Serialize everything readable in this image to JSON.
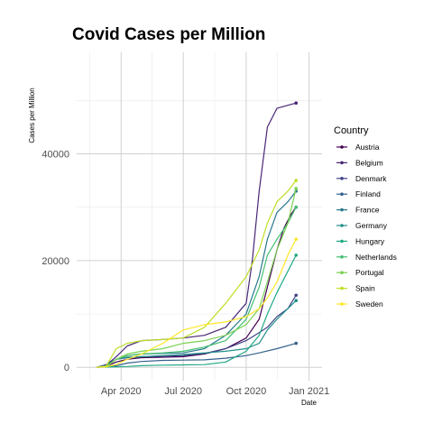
{
  "chart_data": {
    "type": "line",
    "title": "Covid Cases per Million",
    "xlabel": "Date",
    "ylabel": "Cases per Million",
    "x_ticks": [
      "Apr 2020",
      "Jul 2020",
      "Oct 2020",
      "Jan 2021"
    ],
    "y_ticks": [
      "0",
      "20000",
      "40000"
    ],
    "xlim": [
      "2020-01-27",
      "2021-01-20"
    ],
    "ylim": [
      -2500,
      59000
    ],
    "grid": true,
    "legend": {
      "title": "Country",
      "position": "right"
    },
    "series": [
      {
        "name": "Austria",
        "color": "#440154",
        "points": [
          [
            "2020-02-25",
            0
          ],
          [
            "2020-03-10",
            200
          ],
          [
            "2020-03-25",
            1000
          ],
          [
            "2020-04-10",
            1500
          ],
          [
            "2020-05-01",
            1800
          ],
          [
            "2020-06-01",
            1900
          ],
          [
            "2020-07-01",
            2000
          ],
          [
            "2020-08-01",
            2500
          ],
          [
            "2020-09-01",
            3500
          ],
          [
            "2020-10-01",
            5500
          ],
          [
            "2020-10-20",
            9000
          ],
          [
            "2020-11-01",
            15000
          ],
          [
            "2020-11-15",
            22000
          ],
          [
            "2020-11-25",
            26000
          ],
          [
            "2020-12-05",
            28500
          ],
          [
            "2020-12-13",
            30000
          ]
        ]
      },
      {
        "name": "Belgium",
        "color": "#482576",
        "points": [
          [
            "2020-02-25",
            0
          ],
          [
            "2020-03-10",
            400
          ],
          [
            "2020-03-25",
            2000
          ],
          [
            "2020-04-10",
            4000
          ],
          [
            "2020-05-01",
            5000
          ],
          [
            "2020-06-01",
            5200
          ],
          [
            "2020-07-01",
            5500
          ],
          [
            "2020-08-01",
            6000
          ],
          [
            "2020-09-01",
            7500
          ],
          [
            "2020-10-01",
            12000
          ],
          [
            "2020-10-10",
            20000
          ],
          [
            "2020-10-20",
            33000
          ],
          [
            "2020-11-01",
            45000
          ],
          [
            "2020-11-15",
            48500
          ],
          [
            "2020-12-13",
            49500
          ]
        ]
      },
      {
        "name": "Denmark",
        "color": "#414487",
        "points": [
          [
            "2020-02-25",
            0
          ],
          [
            "2020-03-10",
            500
          ],
          [
            "2020-03-25",
            1500
          ],
          [
            "2020-04-10",
            1800
          ],
          [
            "2020-05-01",
            2000
          ],
          [
            "2020-06-01",
            2100
          ],
          [
            "2020-07-01",
            2200
          ],
          [
            "2020-08-01",
            2600
          ],
          [
            "2020-09-01",
            3500
          ],
          [
            "2020-10-01",
            5000
          ],
          [
            "2020-10-20",
            6500
          ],
          [
            "2020-11-01",
            7500
          ],
          [
            "2020-11-15",
            9500
          ],
          [
            "2020-12-01",
            11000
          ],
          [
            "2020-12-13",
            13500
          ]
        ]
      },
      {
        "name": "Finland",
        "color": "#35608d",
        "points": [
          [
            "2020-02-25",
            0
          ],
          [
            "2020-03-10",
            100
          ],
          [
            "2020-03-25",
            300
          ],
          [
            "2020-04-10",
            800
          ],
          [
            "2020-05-01",
            1100
          ],
          [
            "2020-06-01",
            1300
          ],
          [
            "2020-07-01",
            1350
          ],
          [
            "2020-08-01",
            1400
          ],
          [
            "2020-09-01",
            1700
          ],
          [
            "2020-10-01",
            2200
          ],
          [
            "2020-10-20",
            2700
          ],
          [
            "2020-11-15",
            3500
          ],
          [
            "2020-12-13",
            4500
          ]
        ]
      },
      {
        "name": "France",
        "color": "#2a788e",
        "points": [
          [
            "2020-02-25",
            0
          ],
          [
            "2020-03-10",
            300
          ],
          [
            "2020-03-25",
            1500
          ],
          [
            "2020-04-10",
            2200
          ],
          [
            "2020-05-01",
            2500
          ],
          [
            "2020-06-01",
            2600
          ],
          [
            "2020-07-01",
            2700
          ],
          [
            "2020-08-01",
            3500
          ],
          [
            "2020-09-01",
            6000
          ],
          [
            "2020-10-01",
            10000
          ],
          [
            "2020-10-20",
            17000
          ],
          [
            "2020-11-01",
            24000
          ],
          [
            "2020-11-15",
            29000
          ],
          [
            "2020-12-01",
            31000
          ],
          [
            "2020-12-13",
            33000
          ]
        ]
      },
      {
        "name": "Germany",
        "color": "#21908c",
        "points": [
          [
            "2020-02-25",
            0
          ],
          [
            "2020-03-10",
            300
          ],
          [
            "2020-03-25",
            1500
          ],
          [
            "2020-04-10",
            1900
          ],
          [
            "2020-05-01",
            2000
          ],
          [
            "2020-06-01",
            2200
          ],
          [
            "2020-07-01",
            2400
          ],
          [
            "2020-08-01",
            2700
          ],
          [
            "2020-09-01",
            3000
          ],
          [
            "2020-10-01",
            3500
          ],
          [
            "2020-10-20",
            4500
          ],
          [
            "2020-11-01",
            7000
          ],
          [
            "2020-11-15",
            9000
          ],
          [
            "2020-12-01",
            11000
          ],
          [
            "2020-12-13",
            12500
          ]
        ]
      },
      {
        "name": "Hungary",
        "color": "#22a884",
        "points": [
          [
            "2020-02-25",
            0
          ],
          [
            "2020-03-25",
            100
          ],
          [
            "2020-04-10",
            150
          ],
          [
            "2020-05-01",
            300
          ],
          [
            "2020-06-01",
            400
          ],
          [
            "2020-07-01",
            450
          ],
          [
            "2020-08-01",
            500
          ],
          [
            "2020-09-01",
            1000
          ],
          [
            "2020-10-01",
            3000
          ],
          [
            "2020-10-20",
            6000
          ],
          [
            "2020-11-01",
            10000
          ],
          [
            "2020-11-15",
            14000
          ],
          [
            "2020-12-01",
            18000
          ],
          [
            "2020-12-13",
            21000
          ]
        ]
      },
      {
        "name": "Netherlands",
        "color": "#43bf71",
        "points": [
          [
            "2020-02-25",
            0
          ],
          [
            "2020-03-10",
            200
          ],
          [
            "2020-03-25",
            1500
          ],
          [
            "2020-04-10",
            2200
          ],
          [
            "2020-05-01",
            2500
          ],
          [
            "2020-06-01",
            2700
          ],
          [
            "2020-07-01",
            3000
          ],
          [
            "2020-08-01",
            3800
          ],
          [
            "2020-09-01",
            5000
          ],
          [
            "2020-10-01",
            9000
          ],
          [
            "2020-10-20",
            15000
          ],
          [
            "2020-11-01",
            21000
          ],
          [
            "2020-11-15",
            24000
          ],
          [
            "2020-12-01",
            27000
          ],
          [
            "2020-12-13",
            30000
          ]
        ]
      },
      {
        "name": "Portugal",
        "color": "#7ad151",
        "points": [
          [
            "2020-02-25",
            0
          ],
          [
            "2020-03-10",
            100
          ],
          [
            "2020-03-25",
            1500
          ],
          [
            "2020-04-10",
            2500
          ],
          [
            "2020-05-01",
            3000
          ],
          [
            "2020-06-01",
            3500
          ],
          [
            "2020-07-01",
            4500
          ],
          [
            "2020-08-01",
            5000
          ],
          [
            "2020-09-01",
            6000
          ],
          [
            "2020-10-01",
            8000
          ],
          [
            "2020-10-20",
            11000
          ],
          [
            "2020-11-01",
            16000
          ],
          [
            "2020-11-15",
            22000
          ],
          [
            "2020-12-01",
            27000
          ],
          [
            "2020-12-13",
            33500
          ]
        ]
      },
      {
        "name": "Spain",
        "color": "#bddf26",
        "points": [
          [
            "2020-02-25",
            0
          ],
          [
            "2020-03-10",
            200
          ],
          [
            "2020-03-25",
            3500
          ],
          [
            "2020-04-10",
            4500
          ],
          [
            "2020-05-01",
            5000
          ],
          [
            "2020-06-01",
            5200
          ],
          [
            "2020-07-01",
            5500
          ],
          [
            "2020-08-01",
            7500
          ],
          [
            "2020-09-01",
            12000
          ],
          [
            "2020-10-01",
            17000
          ],
          [
            "2020-10-20",
            22000
          ],
          [
            "2020-11-01",
            27000
          ],
          [
            "2020-11-15",
            31000
          ],
          [
            "2020-12-01",
            33000
          ],
          [
            "2020-12-13",
            35000
          ]
        ]
      },
      {
        "name": "Sweden",
        "color": "#fde725",
        "points": [
          [
            "2020-02-25",
            0
          ],
          [
            "2020-03-10",
            100
          ],
          [
            "2020-03-25",
            500
          ],
          [
            "2020-04-10",
            1500
          ],
          [
            "2020-05-01",
            2500
          ],
          [
            "2020-06-01",
            4500
          ],
          [
            "2020-07-01",
            7000
          ],
          [
            "2020-08-01",
            8000
          ],
          [
            "2020-09-01",
            8500
          ],
          [
            "2020-10-01",
            9500
          ],
          [
            "2020-10-20",
            11000
          ],
          [
            "2020-11-01",
            13000
          ],
          [
            "2020-11-15",
            16000
          ],
          [
            "2020-12-01",
            21000
          ],
          [
            "2020-12-13",
            24000
          ]
        ]
      }
    ]
  }
}
